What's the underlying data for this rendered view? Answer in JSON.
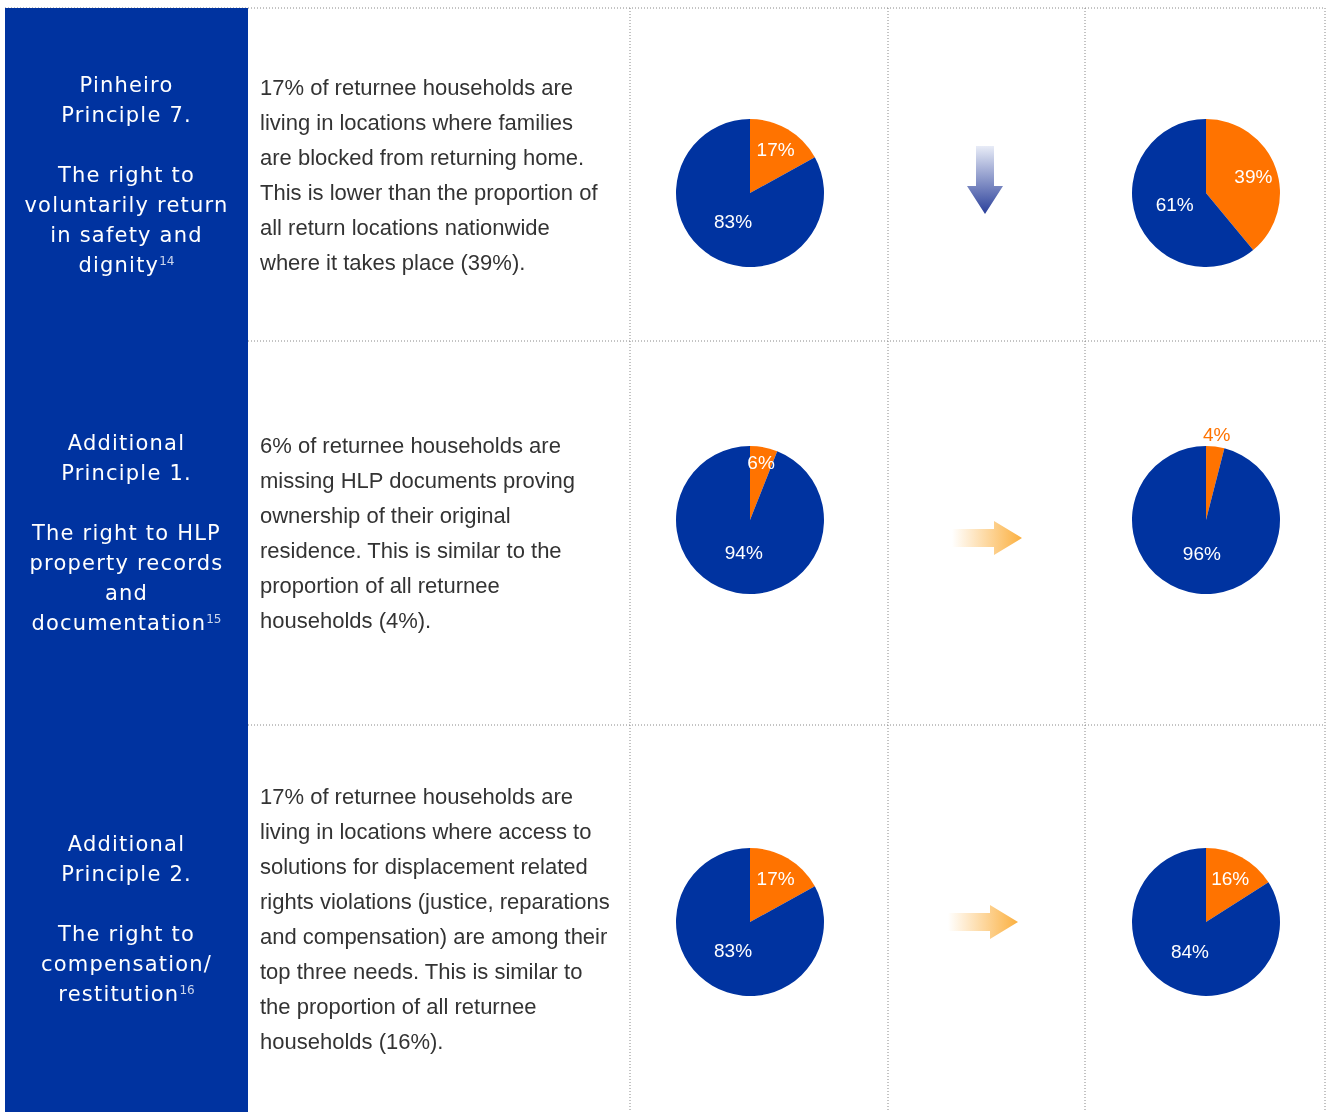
{
  "chart_data": [
    {
      "type": "other",
      "title": "Pinheiro Principle 7.",
      "subtitle": "The right to voluntarily return in safety and dignity$^{14}$"
    },
    {
      "type": "other",
      "annotations": [
        "17% of returnee households are living in locations where families are blocked from returning home.  This is lower than the proportion of all return locations nationwide where it takes place (39%)."
      ]
    },
    {
      "type": "pie",
      "categories": [
        null,
        null
      ],
      "values": [
        17,
        83
      ],
      "colors": [
        "#ff7300",
        "#0033a0"
      ],
      "value_labels": [
        "17%",
        "83%"
      ]
    },
    {
      "type": "pie",
      "categories": [
        null,
        null
      ],
      "values": [
        39,
        61
      ],
      "colors": [
        "#ff7300",
        "#0033a0"
      ],
      "value_labels": [
        "39%",
        "61%"
      ]
    },
    {
      "type": "other",
      "title": "Additional Principle 1.",
      "subtitle": "The right to HLP property records and documentation$^{15}$"
    },
    {
      "type": "other",
      "annotations": [
        "6% of returnee households are missing HLP documents proving ownership of their original residence. This is similar to the proportion of all returnee households (4%)."
      ]
    },
    {
      "type": "pie",
      "categories": [
        null,
        null
      ],
      "values": [
        6,
        94
      ],
      "colors": [
        "#ff7300",
        "#0033a0"
      ],
      "value_labels": [
        "6%",
        "94%"
      ]
    },
    {
      "type": "pie",
      "categories": [
        null,
        null
      ],
      "values": [
        4,
        96
      ],
      "colors": [
        "#ff7300",
        "#0033a0"
      ],
      "value_labels": [
        "4%",
        "96%"
      ]
    },
    {
      "type": "other",
      "title": "Additional Principle 2.",
      "subtitle": "The right to compensation/ restitution$^{16}$"
    },
    {
      "type": "other",
      "annotations": [
        "17% of returnee households are living in locations where access to solutions for displacement related rights violations (justice, reparations and compensation) are among their top three needs. This is similar to the proportion of all returnee households (16%)."
      ]
    },
    {
      "type": "pie",
      "categories": [
        null,
        null
      ],
      "values": [
        17,
        83
      ],
      "colors": [
        "#ff7300",
        "#0033a0"
      ],
      "value_labels": [
        "17%",
        "83%"
      ]
    },
    {
      "type": "pie",
      "categories": [
        null,
        null
      ],
      "values": [
        16,
        84
      ],
      "colors": [
        "#ff7300",
        "#0033a0"
      ],
      "value_labels": [
        "16%",
        "84%"
      ]
    }
  ]
}
